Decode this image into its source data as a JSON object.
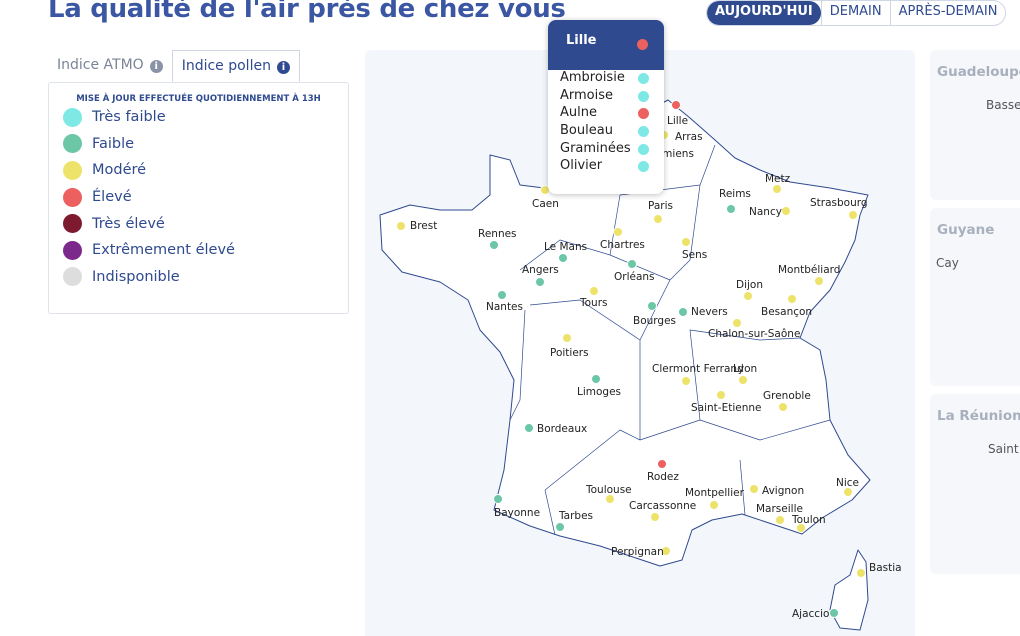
{
  "header": {
    "title": "La qualité de l'air près de chez vous"
  },
  "day_tabs": [
    "AUJOURD'HUI",
    "DEMAIN",
    "APRÈS-DEMAIN"
  ],
  "index_tabs": [
    "Indice ATMO",
    "Indice pollen"
  ],
  "legend": {
    "note": "MISE À JOUR EFFECTUÉE QUOTIDIENNEMENT À 13H",
    "items": [
      {
        "label": "Très faible",
        "color": "#7ee8e4"
      },
      {
        "label": "Faible",
        "color": "#6cc7a6"
      },
      {
        "label": "Modéré",
        "color": "#eee36a"
      },
      {
        "label": "Élevé",
        "color": "#ec6060"
      },
      {
        "label": "Très élevé",
        "color": "#7d1a30"
      },
      {
        "label": "Extrêmement élevé",
        "color": "#7b2a8c"
      },
      {
        "label": "Indisponible",
        "color": "#dddddd"
      }
    ]
  },
  "cities": [
    {
      "name": "Lille",
      "color": "#ec6060"
    },
    {
      "name": "Arras",
      "color": "#eee36a"
    },
    {
      "name": "Amiens",
      "color": "#eee36a"
    },
    {
      "name": "Caen",
      "color": "#eee36a"
    },
    {
      "name": "Brest",
      "color": "#eee36a"
    },
    {
      "name": "Rennes",
      "color": "#6cc7a6"
    },
    {
      "name": "Le Mans",
      "color": "#6cc7a6"
    },
    {
      "name": "Paris",
      "color": "#eee36a"
    },
    {
      "name": "Chartres",
      "color": "#eee36a"
    },
    {
      "name": "Reims",
      "color": "#6cc7a6"
    },
    {
      "name": "Metz",
      "color": "#eee36a"
    },
    {
      "name": "Nancy",
      "color": "#eee36a"
    },
    {
      "name": "Strasbourg",
      "color": "#eee36a"
    },
    {
      "name": "Sens",
      "color": "#eee36a"
    },
    {
      "name": "Angers",
      "color": "#6cc7a6"
    },
    {
      "name": "Orléans",
      "color": "#6cc7a6"
    },
    {
      "name": "Nantes",
      "color": "#6cc7a6"
    },
    {
      "name": "Tours",
      "color": "#eee36a"
    },
    {
      "name": "Bourges",
      "color": "#6cc7a6"
    },
    {
      "name": "Nevers",
      "color": "#6cc7a6"
    },
    {
      "name": "Dijon",
      "color": "#eee36a"
    },
    {
      "name": "Besançon",
      "color": "#eee36a"
    },
    {
      "name": "Montbéliard",
      "color": "#eee36a"
    },
    {
      "name": "Chalon-sur-Saône",
      "color": "#eee36a"
    },
    {
      "name": "Poitiers",
      "color": "#eee36a"
    },
    {
      "name": "Limoges",
      "color": "#6cc7a6"
    },
    {
      "name": "Clermont Ferrand",
      "color": "#eee36a"
    },
    {
      "name": "Lyon",
      "color": "#eee36a"
    },
    {
      "name": "Saint-Etienne",
      "color": "#eee36a"
    },
    {
      "name": "Grenoble",
      "color": "#eee36a"
    },
    {
      "name": "Bordeaux",
      "color": "#6cc7a6"
    },
    {
      "name": "Rodez",
      "color": "#ec6060"
    },
    {
      "name": "Toulouse",
      "color": "#eee36a"
    },
    {
      "name": "Montpellier",
      "color": "#eee36a"
    },
    {
      "name": "Avignon",
      "color": "#eee36a"
    },
    {
      "name": "Nice",
      "color": "#eee36a"
    },
    {
      "name": "Marseille",
      "color": "#eee36a"
    },
    {
      "name": "Toulon",
      "color": "#eee36a"
    },
    {
      "name": "Carcassonne",
      "color": "#eee36a"
    },
    {
      "name": "Bayonne",
      "color": "#6cc7a6"
    },
    {
      "name": "Tarbes",
      "color": "#6cc7a6"
    },
    {
      "name": "Perpignan",
      "color": "#eee36a"
    },
    {
      "name": "Bastia",
      "color": "#eee36a"
    },
    {
      "name": "Ajaccio",
      "color": "#6cc7a6"
    }
  ],
  "tooltip": {
    "title": "Lille",
    "title_color": "#ec6060",
    "items": [
      {
        "name": "Ambroisie",
        "color": "#7ee8e4"
      },
      {
        "name": "Armoise",
        "color": "#7ee8e4"
      },
      {
        "name": "Aulne",
        "color": "#ec6060"
      },
      {
        "name": "Bouleau",
        "color": "#7ee8e4"
      },
      {
        "name": "Graminées",
        "color": "#7ee8e4"
      },
      {
        "name": "Olivier",
        "color": "#7ee8e4"
      }
    ]
  },
  "overseas": [
    {
      "title": "Guadeloupe",
      "place": "Basse-"
    },
    {
      "title": "Guyane",
      "place": "Cay"
    },
    {
      "title": "La Réunion",
      "place": "Saint"
    }
  ]
}
